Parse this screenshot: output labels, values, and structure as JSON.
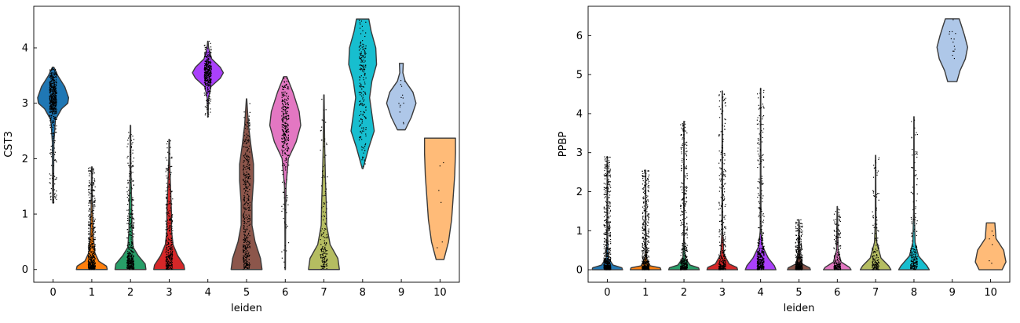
{
  "chart_data": [
    {
      "type": "violin",
      "title": "",
      "xlabel": "leiden",
      "ylabel": "CST3",
      "categories": [
        "0",
        "1",
        "2",
        "3",
        "4",
        "5",
        "6",
        "7",
        "8",
        "9",
        "10"
      ],
      "yticks": [
        0,
        1,
        2,
        3,
        4
      ],
      "ylim": [
        -0.23,
        4.75
      ],
      "colors": [
        "#1f77b4",
        "#ff7f0e",
        "#279e68",
        "#d62728",
        "#aa40fc",
        "#8c564b",
        "#e377c2",
        "#b5bd61",
        "#17becf",
        "#aec7e8",
        "#ffbb78"
      ],
      "violins": [
        {
          "min": 1.2,
          "max": 3.65,
          "shape": [
            [
              1.2,
              0.01
            ],
            [
              2.3,
              0.02
            ],
            [
              2.7,
              0.06
            ],
            [
              2.9,
              0.22
            ],
            [
              3.0,
              0.38
            ],
            [
              3.1,
              0.4
            ],
            [
              3.3,
              0.3
            ],
            [
              3.5,
              0.12
            ],
            [
              3.65,
              0.02
            ]
          ],
          "points": 600
        },
        {
          "min": 0.0,
          "max": 1.85,
          "shape": [
            [
              0.0,
              0.4
            ],
            [
              0.06,
              0.38
            ],
            [
              0.15,
              0.18
            ],
            [
              0.3,
              0.08
            ],
            [
              0.6,
              0.04
            ],
            [
              1.0,
              0.02
            ],
            [
              1.5,
              0.01
            ],
            [
              1.85,
              0.01
            ]
          ],
          "points": 500
        },
        {
          "min": 0.0,
          "max": 2.6,
          "shape": [
            [
              0.0,
              0.4
            ],
            [
              0.1,
              0.38
            ],
            [
              0.25,
              0.2
            ],
            [
              0.4,
              0.07
            ],
            [
              0.7,
              0.04
            ],
            [
              1.2,
              0.03
            ],
            [
              1.8,
              0.01
            ],
            [
              2.6,
              0.005
            ]
          ],
          "points": 420
        },
        {
          "min": 0.0,
          "max": 2.35,
          "shape": [
            [
              0.0,
              0.4
            ],
            [
              0.08,
              0.38
            ],
            [
              0.25,
              0.22
            ],
            [
              0.45,
              0.1
            ],
            [
              0.7,
              0.06
            ],
            [
              1.0,
              0.06
            ],
            [
              1.4,
              0.04
            ],
            [
              2.0,
              0.01
            ],
            [
              2.35,
              0.005
            ]
          ],
          "points": 320
        },
        {
          "min": 2.75,
          "max": 4.12,
          "shape": [
            [
              2.75,
              0.005
            ],
            [
              3.1,
              0.02
            ],
            [
              3.3,
              0.08
            ],
            [
              3.45,
              0.32
            ],
            [
              3.55,
              0.4
            ],
            [
              3.65,
              0.32
            ],
            [
              3.8,
              0.1
            ],
            [
              4.0,
              0.02
            ],
            [
              4.12,
              0.005
            ]
          ],
          "points": 420
        },
        {
          "min": 0.0,
          "max": 3.08,
          "shape": [
            [
              0.0,
              0.4
            ],
            [
              0.2,
              0.36
            ],
            [
              0.5,
              0.22
            ],
            [
              0.8,
              0.14
            ],
            [
              1.2,
              0.14
            ],
            [
              1.6,
              0.18
            ],
            [
              1.9,
              0.18
            ],
            [
              2.2,
              0.12
            ],
            [
              2.6,
              0.05
            ],
            [
              3.08,
              0.005
            ]
          ],
          "points": 420
        },
        {
          "min": 0.0,
          "max": 3.48,
          "shape": [
            [
              0.0,
              0.005
            ],
            [
              1.0,
              0.01
            ],
            [
              1.5,
              0.02
            ],
            [
              2.0,
              0.08
            ],
            [
              2.3,
              0.28
            ],
            [
              2.6,
              0.4
            ],
            [
              2.85,
              0.36
            ],
            [
              3.2,
              0.2
            ],
            [
              3.48,
              0.04
            ]
          ],
          "points": 320
        },
        {
          "min": 0.0,
          "max": 3.15,
          "shape": [
            [
              0.0,
              0.4
            ],
            [
              0.2,
              0.36
            ],
            [
              0.45,
              0.16
            ],
            [
              0.8,
              0.07
            ],
            [
              1.2,
              0.06
            ],
            [
              1.6,
              0.04
            ],
            [
              2.2,
              0.02
            ],
            [
              3.15,
              0.005
            ]
          ],
          "points": 160
        },
        {
          "min": 1.82,
          "max": 4.52,
          "shape": [
            [
              1.82,
              0.01
            ],
            [
              2.2,
              0.16
            ],
            [
              2.5,
              0.3
            ],
            [
              2.8,
              0.24
            ],
            [
              3.1,
              0.18
            ],
            [
              3.4,
              0.24
            ],
            [
              3.7,
              0.36
            ],
            [
              4.0,
              0.34
            ],
            [
              4.3,
              0.22
            ],
            [
              4.52,
              0.16
            ]
          ],
          "points": 200
        },
        {
          "min": 2.52,
          "max": 3.72,
          "shape": [
            [
              2.52,
              0.1
            ],
            [
              2.75,
              0.26
            ],
            [
              3.0,
              0.38
            ],
            [
              3.2,
              0.3
            ],
            [
              3.4,
              0.1
            ],
            [
              3.55,
              0.04
            ],
            [
              3.72,
              0.05
            ]
          ],
          "points": 14
        },
        {
          "min": 0.18,
          "max": 2.37,
          "shape": [
            [
              0.18,
              0.1
            ],
            [
              0.5,
              0.22
            ],
            [
              0.9,
              0.3
            ],
            [
              1.3,
              0.34
            ],
            [
              1.7,
              0.38
            ],
            [
              2.1,
              0.4
            ],
            [
              2.37,
              0.4
            ]
          ],
          "points": 6
        }
      ]
    },
    {
      "type": "violin",
      "title": "",
      "xlabel": "leiden",
      "ylabel": "PPBP",
      "categories": [
        "0",
        "1",
        "2",
        "3",
        "4",
        "5",
        "6",
        "7",
        "8",
        "9",
        "10"
      ],
      "yticks": [
        0,
        1,
        2,
        3,
        4,
        5,
        6
      ],
      "ylim": [
        -0.32,
        6.75
      ],
      "colors": [
        "#1f77b4",
        "#ff7f0e",
        "#279e68",
        "#d62728",
        "#aa40fc",
        "#8c564b",
        "#e377c2",
        "#b5bd61",
        "#17becf",
        "#aec7e8",
        "#ffbb78"
      ],
      "violins": [
        {
          "min": 0.0,
          "max": 2.9,
          "shape": [
            [
              0.0,
              0.4
            ],
            [
              0.05,
              0.38
            ],
            [
              0.12,
              0.15
            ],
            [
              0.3,
              0.03
            ],
            [
              0.8,
              0.01
            ],
            [
              2.9,
              0.004
            ]
          ],
          "points": 600
        },
        {
          "min": 0.0,
          "max": 2.55,
          "shape": [
            [
              0.0,
              0.4
            ],
            [
              0.05,
              0.38
            ],
            [
              0.1,
              0.12
            ],
            [
              0.3,
              0.02
            ],
            [
              0.8,
              0.006
            ],
            [
              2.55,
              0.004
            ]
          ],
          "points": 500
        },
        {
          "min": 0.0,
          "max": 3.8,
          "shape": [
            [
              0.0,
              0.4
            ],
            [
              0.05,
              0.38
            ],
            [
              0.12,
              0.16
            ],
            [
              0.3,
              0.03
            ],
            [
              0.8,
              0.008
            ],
            [
              3.8,
              0.004
            ]
          ],
          "points": 420
        },
        {
          "min": 0.0,
          "max": 4.58,
          "shape": [
            [
              0.0,
              0.4
            ],
            [
              0.06,
              0.38
            ],
            [
              0.15,
              0.18
            ],
            [
              0.4,
              0.04
            ],
            [
              1.0,
              0.01
            ],
            [
              4.58,
              0.004
            ]
          ],
          "points": 320
        },
        {
          "min": 0.0,
          "max": 4.65,
          "shape": [
            [
              0.0,
              0.4
            ],
            [
              0.1,
              0.36
            ],
            [
              0.3,
              0.2
            ],
            [
              0.6,
              0.05
            ],
            [
              1.0,
              0.01
            ],
            [
              4.65,
              0.004
            ]
          ],
          "points": 420
        },
        {
          "min": 0.0,
          "max": 1.28,
          "shape": [
            [
              0.0,
              0.3
            ],
            [
              0.05,
              0.28
            ],
            [
              0.15,
              0.08
            ],
            [
              0.4,
              0.02
            ],
            [
              1.28,
              0.004
            ]
          ],
          "points": 400
        },
        {
          "min": 0.0,
          "max": 1.62,
          "shape": [
            [
              0.0,
              0.36
            ],
            [
              0.06,
              0.32
            ],
            [
              0.2,
              0.1
            ],
            [
              0.5,
              0.02
            ],
            [
              1.62,
              0.004
            ]
          ],
          "points": 200
        },
        {
          "min": 0.0,
          "max": 2.93,
          "shape": [
            [
              0.0,
              0.4
            ],
            [
              0.1,
              0.34
            ],
            [
              0.3,
              0.14
            ],
            [
              0.7,
              0.03
            ],
            [
              1.2,
              0.01
            ],
            [
              2.93,
              0.004
            ]
          ],
          "points": 160
        },
        {
          "min": 0.0,
          "max": 3.92,
          "shape": [
            [
              0.0,
              0.4
            ],
            [
              0.1,
              0.34
            ],
            [
              0.35,
              0.12
            ],
            [
              0.7,
              0.03
            ],
            [
              1.5,
              0.008
            ],
            [
              3.92,
              0.004
            ]
          ],
          "points": 200
        },
        {
          "min": 4.82,
          "max": 6.43,
          "shape": [
            [
              4.82,
              0.12
            ],
            [
              5.1,
              0.2
            ],
            [
              5.4,
              0.34
            ],
            [
              5.7,
              0.4
            ],
            [
              6.0,
              0.32
            ],
            [
              6.25,
              0.24
            ],
            [
              6.43,
              0.18
            ]
          ],
          "points": 14
        },
        {
          "min": 0.0,
          "max": 1.2,
          "shape": [
            [
              0.0,
              0.3
            ],
            [
              0.2,
              0.4
            ],
            [
              0.5,
              0.34
            ],
            [
              0.8,
              0.14
            ],
            [
              1.2,
              0.11
            ]
          ],
          "points": 6
        }
      ]
    }
  ]
}
